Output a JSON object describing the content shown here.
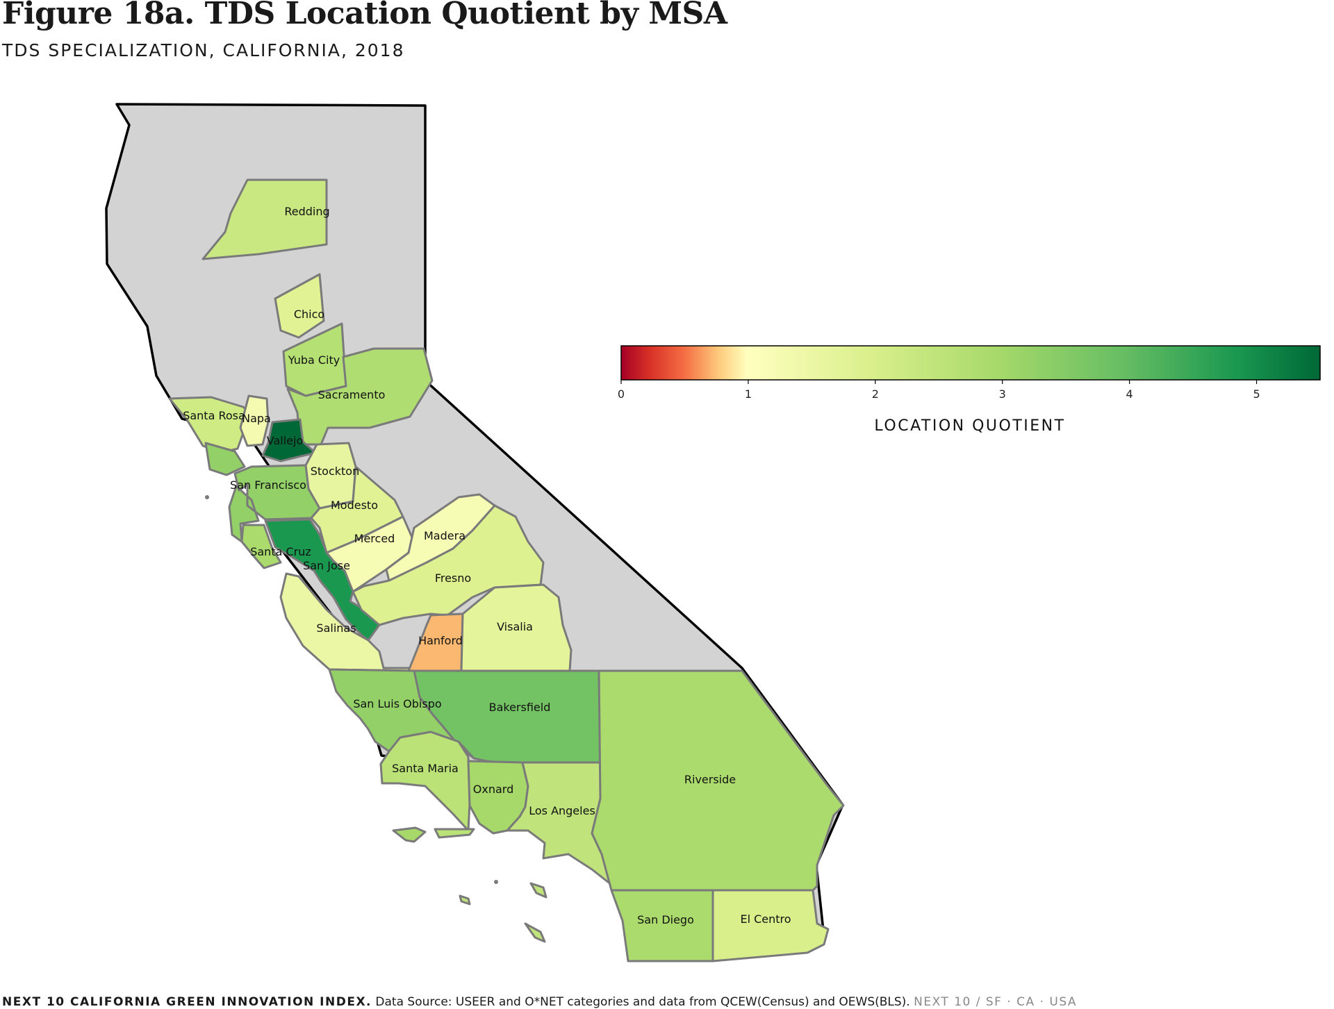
{
  "header": {
    "title": "Figure 18a. TDS Location Quotient by MSA",
    "subtitle": "TDS SPECIALIZATION, CALIFORNIA, 2018"
  },
  "legend": {
    "title": "LOCATION QUOTIENT",
    "min": 0,
    "max": 5.5,
    "ticks": [
      "0",
      "1",
      "2",
      "3",
      "4",
      "5"
    ],
    "colormap": "red-yellow-green"
  },
  "colors": {
    "unassigned_region": "#d3d3d3",
    "msa_border": "#7a7a7a",
    "state_border": "#000000"
  },
  "regions": [
    {
      "name": "Redding",
      "lq": 2.3
    },
    {
      "name": "Chico",
      "lq": 1.8
    },
    {
      "name": "Yuba City",
      "lq": 2.7
    },
    {
      "name": "Sacramento",
      "lq": 2.8
    },
    {
      "name": "Santa Rosa",
      "lq": 2.2
    },
    {
      "name": "Napa",
      "lq": 1.3
    },
    {
      "name": "Vallejo",
      "lq": 5.5
    },
    {
      "name": "Stockton",
      "lq": 1.6
    },
    {
      "name": "San Francisco",
      "lq": 3.3
    },
    {
      "name": "Modesto",
      "lq": 1.8
    },
    {
      "name": "Merced",
      "lq": 1.2
    },
    {
      "name": "Madera",
      "lq": 1.2
    },
    {
      "name": "Santa Cruz",
      "lq": 2.9
    },
    {
      "name": "San Jose",
      "lq": 4.8
    },
    {
      "name": "Fresno",
      "lq": 1.9
    },
    {
      "name": "Salinas",
      "lq": 1.5
    },
    {
      "name": "Hanford",
      "lq": 0.7
    },
    {
      "name": "Visalia",
      "lq": 1.7
    },
    {
      "name": "San Luis Obispo",
      "lq": 3.3
    },
    {
      "name": "Bakersfield",
      "lq": 3.8
    },
    {
      "name": "Santa Maria",
      "lq": 2.6
    },
    {
      "name": "Oxnard",
      "lq": 3.0
    },
    {
      "name": "Los Angeles",
      "lq": 2.5
    },
    {
      "name": "Riverside",
      "lq": 2.9
    },
    {
      "name": "San Diego",
      "lq": 2.9
    },
    {
      "name": "El Centro",
      "lq": 2.0
    }
  ],
  "footer": {
    "brand": "NEXT 10 CALIFORNIA GREEN INNOVATION INDEX.",
    "source": "Data Source: USEER and O*NET categories and data from QCEW(Census) and OEWS(BLS).",
    "org": "NEXT 10 / SF · CA · USA"
  }
}
